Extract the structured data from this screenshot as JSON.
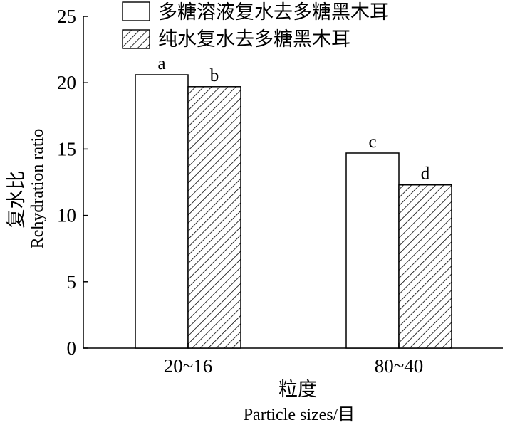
{
  "chart_data": {
    "type": "bar",
    "categories": [
      "20~16",
      "80~40"
    ],
    "series": [
      {
        "name": "多糖溶液复水去多糖黑木耳",
        "pattern": "solid",
        "values": [
          20.6,
          14.7
        ],
        "labels": [
          "a",
          "c"
        ]
      },
      {
        "name": "纯水复水去多糖黑木耳",
        "pattern": "hatched",
        "values": [
          19.7,
          12.3
        ],
        "labels": [
          "b",
          "d"
        ]
      }
    ],
    "ylim": [
      0,
      25
    ],
    "yticks": [
      0,
      5,
      10,
      15,
      20,
      25
    ],
    "ytick_labels": [
      "0",
      "5",
      "10",
      "15",
      "20",
      "25"
    ],
    "ylabel_cn": "复水比",
    "ylabel_en": "Rehydration ratio",
    "xlabel_cn": "粒度",
    "xlabel_en": "Particle sizes/目",
    "legend_position": "top",
    "grid": false,
    "colors": {
      "bar_fill": "#ffffff",
      "stroke": "#000000"
    }
  }
}
